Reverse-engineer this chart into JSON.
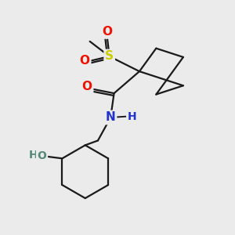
{
  "bg_color": "#ebebeb",
  "bond_color": "#1a1a1a",
  "bond_width": 1.6,
  "dbo": 0.08,
  "atom_labels": {
    "S": {
      "color": "#cccc00",
      "fontsize": 11
    },
    "O": {
      "color": "#ee1100",
      "fontsize": 11
    },
    "O2": {
      "color": "#ee1100",
      "fontsize": 11
    },
    "Oc": {
      "color": "#ee1100",
      "fontsize": 11
    },
    "N": {
      "color": "#2233cc",
      "fontsize": 11
    },
    "H": {
      "color": "#2233cc",
      "fontsize": 10
    },
    "Ho": {
      "color": "#558877",
      "fontsize": 10
    },
    "Hol": {
      "color": "#558877",
      "fontsize": 10
    }
  }
}
